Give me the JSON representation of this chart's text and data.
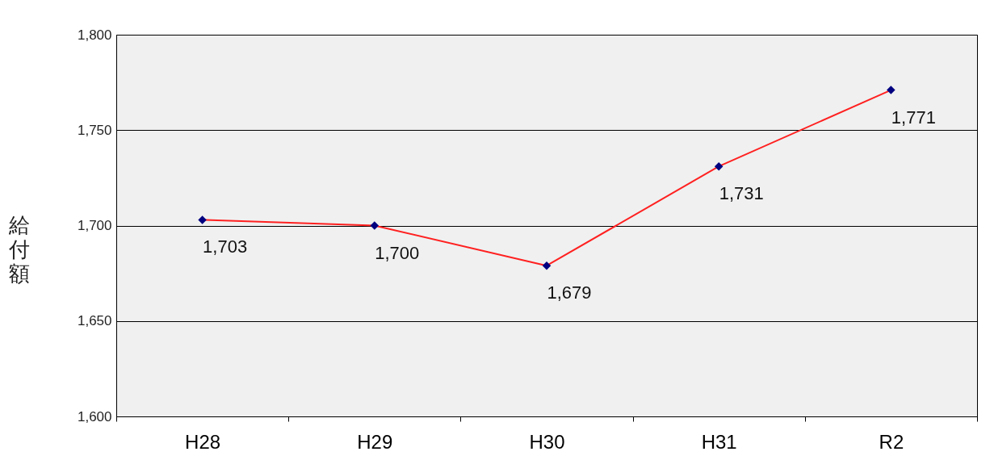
{
  "chart_data": {
    "type": "line",
    "ylabel": "給付額",
    "categories": [
      "H28",
      "H29",
      "H30",
      "H31",
      "R2"
    ],
    "series": [
      {
        "color": "#ff2020",
        "values": [
          1703,
          1700,
          1679,
          1731,
          1771
        ],
        "value_labels": [
          "1,703",
          "1,700",
          "1,679",
          "1,731",
          "1,771"
        ]
      }
    ],
    "ylim": [
      1600,
      1800
    ],
    "yticks": [
      {
        "value": 1600,
        "label": "1,600"
      },
      {
        "value": 1650,
        "label": "1,650"
      },
      {
        "value": 1700,
        "label": "1,700"
      },
      {
        "value": 1750,
        "label": "1,750"
      },
      {
        "value": 1800,
        "label": "1,800"
      }
    ],
    "grid": "y",
    "marker": "diamond"
  }
}
